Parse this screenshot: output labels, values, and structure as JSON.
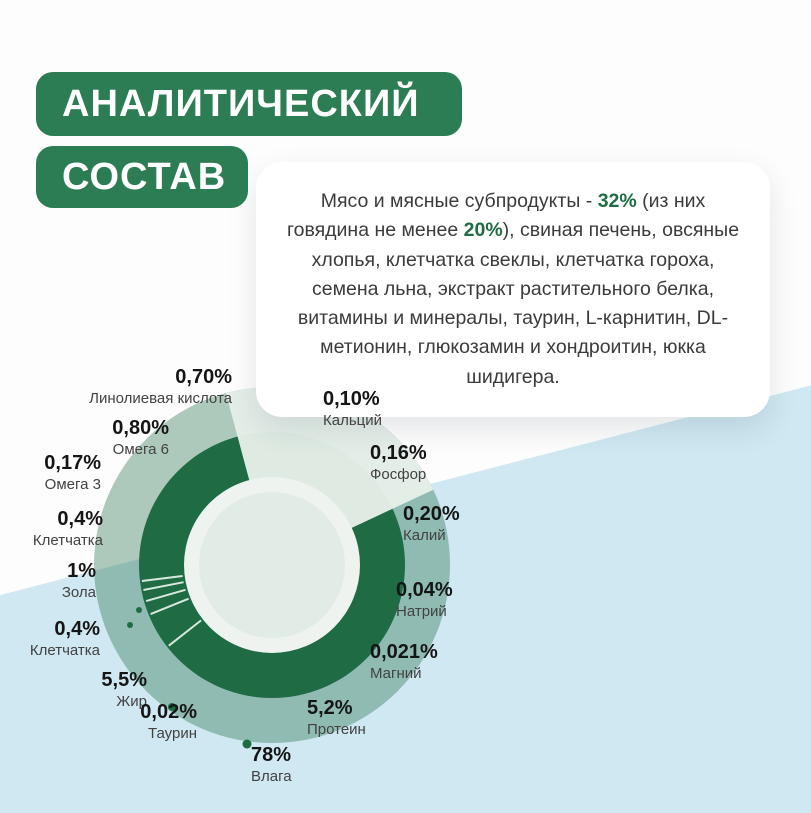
{
  "header": {
    "line1": "АНАЛИТИЧЕСКИЙ",
    "line2": "СОСТАВ"
  },
  "ingredients_card": {
    "segments": [
      {
        "text": "Мясо и мясные субпродукты - "
      },
      {
        "text": "32%",
        "bold": true
      },
      {
        "text": " (из них говядина не менее "
      },
      {
        "text": "20%",
        "bold": true
      },
      {
        "text": "), свиная печень, овсяные хлопья, клетчатка свеклы, клетчатка гороха, семена льна, экстракт растительного белка, витамины и минералы, таурин, L-карнитин, DL-метионин, глюкозамин и хондроитин, юкка шидигера."
      }
    ]
  },
  "colors": {
    "accent_green": "#2d7d54",
    "ring_dark_green": "#1e6b44",
    "ring_light_green": "#aacfbc",
    "background_blue": "#cfe8f1"
  },
  "chart_data": {
    "type": "pie",
    "style": "donut",
    "unit": "%",
    "legend_position": "around-donut",
    "segments": [
      {
        "name": "Линолиевая кислота",
        "value_text": "0,70%",
        "value": 0.7
      },
      {
        "name": "Омега 6",
        "value_text": "0,80%",
        "value": 0.8
      },
      {
        "name": "Омега 3",
        "value_text": "0,17%",
        "value": 0.17
      },
      {
        "name": "Клетчатка",
        "value_text": "0,4%",
        "value": 0.4
      },
      {
        "name": "Зола",
        "value_text": "1%",
        "value": 1
      },
      {
        "name": "Клетчатка",
        "value_text": "0,4%",
        "value": 0.4
      },
      {
        "name": "Жир",
        "value_text": "5,5%",
        "value": 5.5
      },
      {
        "name": "Таурин",
        "value_text": "0,02%",
        "value": 0.02
      },
      {
        "name": "Влага",
        "value_text": "78%",
        "value": 78
      },
      {
        "name": "Протеин",
        "value_text": "5,2%",
        "value": 5.2
      },
      {
        "name": "Магний",
        "value_text": "0,021%",
        "value": 0.021
      },
      {
        "name": "Натрий",
        "value_text": "0,04%",
        "value": 0.04
      },
      {
        "name": "Калий",
        "value_text": "0,20%",
        "value": 0.2
      },
      {
        "name": "Фосфор",
        "value_text": "0,16%",
        "value": 0.16
      },
      {
        "name": "Кальций",
        "value_text": "0,10%",
        "value": 0.1
      }
    ]
  }
}
